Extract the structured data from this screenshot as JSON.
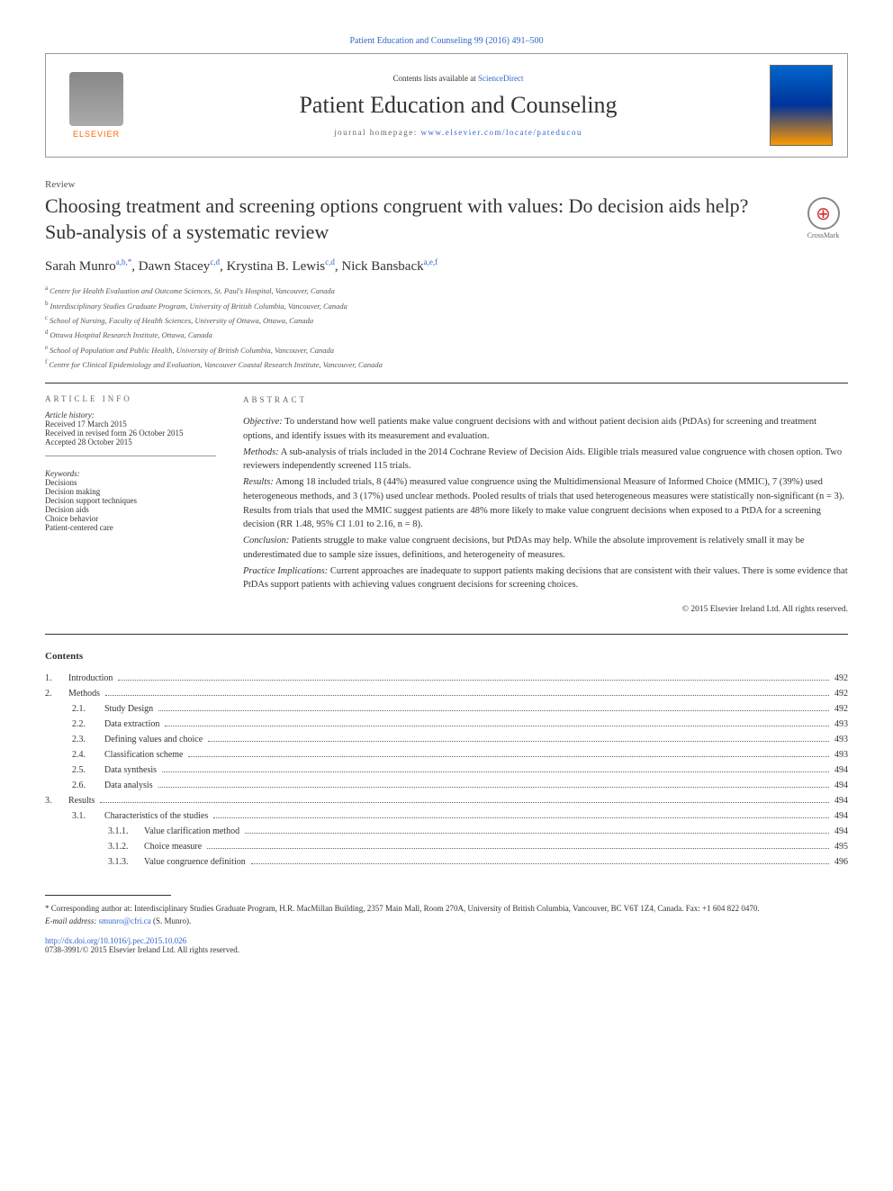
{
  "header": {
    "top_citation": "Patient Education and Counseling 99 (2016) 491–500",
    "contents_prefix": "Contents lists available at ",
    "contents_link": "ScienceDirect",
    "journal_name": "Patient Education and Counseling",
    "homepage_prefix": "journal homepage: ",
    "homepage_url": "www.elsevier.com/locate/pateducou",
    "elsevier_label": "ELSEVIER"
  },
  "article": {
    "type": "Review",
    "title": "Choosing treatment and screening options congruent with values: Do decision aids help? Sub-analysis of a systematic review",
    "crossmark_label": "CrossMark"
  },
  "authors": {
    "a1_name": "Sarah Munro",
    "a1_sup": "a,b,*",
    "a2_name": "Dawn Stacey",
    "a2_sup": "c,d",
    "a3_name": "Krystina B. Lewis",
    "a3_sup": "c,d",
    "a4_name": "Nick Bansback",
    "a4_sup": "a,e,f"
  },
  "affiliations": {
    "a": "Centre for Health Evaluation and Outcome Sciences, St. Paul's Hospital, Vancouver, Canada",
    "b": "Interdisciplinary Studies Graduate Program, University of British Columbia, Vancouver, Canada",
    "c": "School of Nursing, Faculty of Health Sciences, University of Ottawa, Ottawa, Canada",
    "d": "Ottawa Hospital Research Institute, Ottawa, Canada",
    "e": "School of Population and Public Health, University of British Columbia, Vancouver, Canada",
    "f": "Centre for Clinical Epidemiology and Evaluation, Vancouver Coastal Research Institute, Vancouver, Canada"
  },
  "info": {
    "heading": "ARTICLE INFO",
    "history_label": "Article history:",
    "received": "Received 17 March 2015",
    "revised": "Received in revised form 26 October 2015",
    "accepted": "Accepted 28 October 2015",
    "keywords_label": "Keywords:",
    "kw1": "Decisions",
    "kw2": "Decision making",
    "kw3": "Decision support techniques",
    "kw4": "Decision aids",
    "kw5": "Choice behavior",
    "kw6": "Patient-centered care"
  },
  "abstract": {
    "heading": "ABSTRACT",
    "objective_label": "Objective:",
    "objective": " To understand how well patients make value congruent decisions with and without patient decision aids (PtDAs) for screening and treatment options, and identify issues with its measurement and evaluation.",
    "methods_label": "Methods:",
    "methods": " A sub-analysis of trials included in the 2014 Cochrane Review of Decision Aids. Eligible trials measured value congruence with chosen option. Two reviewers independently screened 115 trials.",
    "results_label": "Results:",
    "results": " Among 18 included trials, 8 (44%) measured value congruence using the Multidimensional Measure of Informed Choice (MMIC), 7 (39%) used heterogeneous methods, and 3 (17%) used unclear methods. Pooled results of trials that used heterogeneous measures were statistically non-significant (n = 3). Results from trials that used the MMIC suggest patients are 48% more likely to make value congruent decisions when exposed to a PtDA for a screening decision (RR 1.48, 95% CI 1.01 to 2.16, n = 8).",
    "conclusion_label": "Conclusion:",
    "conclusion": " Patients struggle to make value congruent decisions, but PtDAs may help. While the absolute improvement is relatively small it may be underestimated due to sample size issues, definitions, and heterogeneity of measures.",
    "practice_label": "Practice Implications:",
    "practice": " Current approaches are inadequate to support patients making decisions that are consistent with their values. There is some evidence that PtDAs support patients with achieving values congruent decisions for screening choices.",
    "copyright": "© 2015 Elsevier Ireland Ltd. All rights reserved."
  },
  "contents_heading": "Contents",
  "toc": [
    {
      "level": 1,
      "num": "1.",
      "title": "Introduction",
      "page": "492"
    },
    {
      "level": 1,
      "num": "2.",
      "title": "Methods",
      "page": "492"
    },
    {
      "level": 2,
      "num": "2.1.",
      "title": "Study Design",
      "page": "492"
    },
    {
      "level": 2,
      "num": "2.2.",
      "title": "Data extraction",
      "page": "493"
    },
    {
      "level": 2,
      "num": "2.3.",
      "title": "Defining values and choice",
      "page": "493"
    },
    {
      "level": 2,
      "num": "2.4.",
      "title": "Classification scheme",
      "page": "493"
    },
    {
      "level": 2,
      "num": "2.5.",
      "title": "Data synthesis",
      "page": "494"
    },
    {
      "level": 2,
      "num": "2.6.",
      "title": "Data analysis",
      "page": "494"
    },
    {
      "level": 1,
      "num": "3.",
      "title": "Results",
      "page": "494"
    },
    {
      "level": 2,
      "num": "3.1.",
      "title": "Characteristics of the studies",
      "page": "494"
    },
    {
      "level": 3,
      "num": "3.1.1.",
      "title": "Value clarification method",
      "page": "494"
    },
    {
      "level": 3,
      "num": "3.1.2.",
      "title": "Choice measure",
      "page": "495"
    },
    {
      "level": 3,
      "num": "3.1.3.",
      "title": "Value congruence definition",
      "page": "496"
    }
  ],
  "footnotes": {
    "corresponding": "* Corresponding author at: Interdisciplinary Studies Graduate Program, H.R. MacMillan Building, 2357 Main Mall, Room 270A, University of British Columbia, Vancouver, BC V6T 1Z4, Canada. Fax: +1 604 822 0470.",
    "email_label": "E-mail address: ",
    "email": "smunro@cfri.ca",
    "email_suffix": " (S. Munro)."
  },
  "doi": {
    "url": "http://dx.doi.org/10.1016/j.pec.2015.10.026",
    "issn_line": "0738-3991/© 2015 Elsevier Ireland Ltd. All rights reserved."
  },
  "colors": {
    "link": "#3366cc",
    "elsevier_orange": "#ff6600",
    "text": "#333333"
  }
}
